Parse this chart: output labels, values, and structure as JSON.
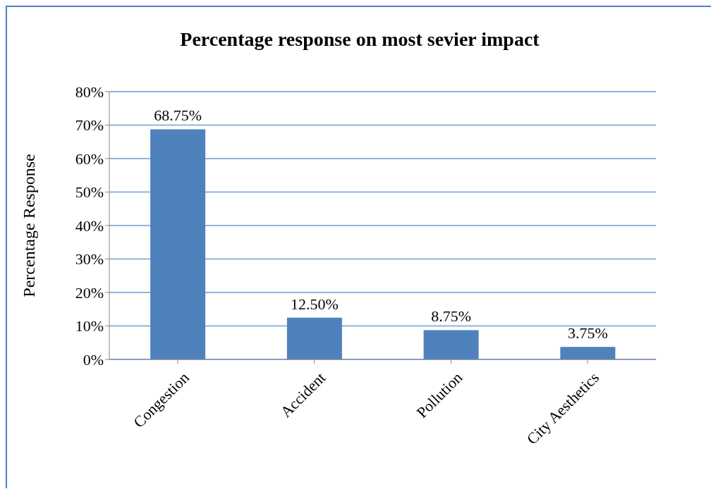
{
  "chart_data": {
    "type": "bar",
    "title": "Percentage response on most sevier impact",
    "ylabel": "Percentage Response",
    "categories": [
      "Congestion",
      "Accident",
      "Pollution",
      "City Aesthetics"
    ],
    "values": [
      68.75,
      12.5,
      8.75,
      3.75
    ],
    "color": "#4f81bd",
    "value_labels": [
      "68.75%",
      "12.50%",
      "8.75%",
      "3.75%"
    ],
    "ylim": [
      0,
      80
    ],
    "yticks": [
      {
        "value": 0,
        "label": "0%"
      },
      {
        "value": 10,
        "label": "10%"
      },
      {
        "value": 20,
        "label": "20%"
      },
      {
        "value": 30,
        "label": "30%"
      },
      {
        "value": 40,
        "label": "40%"
      },
      {
        "value": 50,
        "label": "50%"
      },
      {
        "value": 60,
        "label": "60%"
      },
      {
        "value": 70,
        "label": "70%"
      },
      {
        "value": 80,
        "label": "80%"
      }
    ],
    "grid": "y",
    "legend": false
  }
}
